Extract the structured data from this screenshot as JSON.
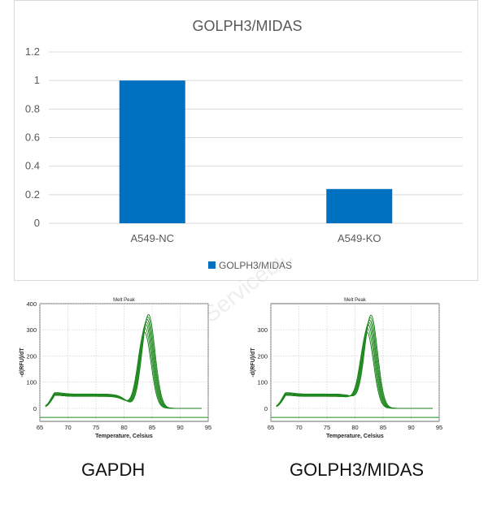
{
  "chart_data": [
    {
      "type": "bar",
      "title": "GOLPH3/MIDAS",
      "categories": [
        "A549-NC",
        "A549-KO"
      ],
      "series": [
        {
          "name": "GOLPH3/MIDAS",
          "values": [
            1.0,
            0.24
          ]
        }
      ],
      "ylim": [
        0,
        1.2
      ],
      "yticks": [
        "0",
        "0.2",
        "0.4",
        "0.6",
        "0.8",
        "1",
        "1.2"
      ],
      "grid": true,
      "legend": "bottom",
      "colors": {
        "bar": "#0070C0",
        "grid": "#d9d9d9"
      }
    },
    {
      "type": "line",
      "title": "Melt Peak",
      "xlabel": "Temperature, Celsius",
      "ylabel": "-d(RFU)/dT",
      "xlim": [
        65,
        95
      ],
      "ylim": [
        -50,
        400
      ],
      "xticks": [
        "65",
        "70",
        "75",
        "80",
        "85",
        "90",
        "95"
      ],
      "yticks": [
        "0",
        "100",
        "200",
        "300",
        "400"
      ],
      "peak_temperature": 84,
      "peak_values": [
        305,
        320,
        335,
        345,
        355,
        365,
        375
      ],
      "baseline_value": 50,
      "grid": true,
      "line_color": "#1e8c1e"
    },
    {
      "type": "line",
      "title": "Melt Peak",
      "xlabel": "Temperature, Celsius",
      "ylabel": "-d(RFU)/dT",
      "xlim": [
        65,
        95
      ],
      "ylim": [
        -50,
        400
      ],
      "xticks": [
        "65",
        "70",
        "75",
        "80",
        "85",
        "90",
        "95"
      ],
      "yticks": [
        "0",
        "100",
        "200",
        "300"
      ],
      "peak_temperature": 82.5,
      "peak_values": [
        300,
        315,
        330,
        340,
        350,
        360,
        370
      ],
      "baseline_value": 50,
      "grid": true,
      "line_color": "#1e8c1e"
    }
  ],
  "labels": {
    "left_caption": "GAPDH",
    "right_caption": "GOLPH3/MIDAS",
    "watermark": "Servicebio"
  }
}
